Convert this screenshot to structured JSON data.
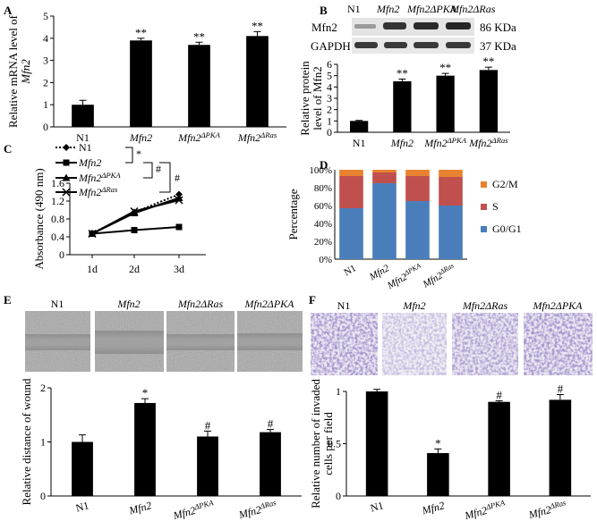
{
  "figure": {
    "panel_letters": {
      "A": "A",
      "B": "B",
      "C": "C",
      "D": "D",
      "E": "E",
      "F": "F"
    }
  },
  "chart_data": [
    {
      "panel": "A",
      "type": "bar",
      "categories": [
        "N1",
        "Mfn2",
        "Mfn2ΔPKA",
        "Mfn2ΔRas"
      ],
      "values": [
        1.0,
        3.9,
        3.7,
        4.1
      ],
      "errors": [
        0.2,
        0.1,
        0.12,
        0.2
      ],
      "annotations": [
        "",
        "**",
        "**",
        "**"
      ],
      "ylabel_line1": "Relative mRNA level of",
      "ylabel_line2": "Mfn2",
      "ylim": [
        0,
        5
      ],
      "yticks": [
        0,
        1,
        2,
        3,
        4,
        5
      ]
    },
    {
      "panel": "B",
      "type": "bar",
      "blot_header": [
        "N1",
        "Mfn2",
        "Mfn2ΔPKA",
        "Mfn2ΔRas"
      ],
      "blot_rows": [
        {
          "protein": "Mfn2",
          "size": "86 KDa"
        },
        {
          "protein": "GAPDH",
          "size": "37 KDa"
        }
      ],
      "categories": [
        "N1",
        "Mfn2",
        "Mfn2ΔPKA",
        "Mfn2ΔRas"
      ],
      "values": [
        1.0,
        4.5,
        5.0,
        5.5
      ],
      "errors": [
        0.05,
        0.2,
        0.2,
        0.25
      ],
      "annotations": [
        "",
        "**",
        "**",
        "**"
      ],
      "ylabel_line1": "Relative protein",
      "ylabel_line2": "level of Mfn2",
      "ylim": [
        0,
        6
      ],
      "yticks": [
        0,
        1,
        2,
        3,
        4,
        5,
        6
      ]
    },
    {
      "panel": "C",
      "type": "line",
      "x": [
        "1d",
        "2d",
        "3d"
      ],
      "series": [
        {
          "name": "N1",
          "values": [
            0.48,
            0.95,
            1.35
          ],
          "style": "dotted",
          "marker": "diamond"
        },
        {
          "name": "Mfn2",
          "values": [
            0.47,
            0.55,
            0.62
          ],
          "style": "solid",
          "marker": "square"
        },
        {
          "name": "Mfn2ΔPKA",
          "values": [
            0.47,
            0.93,
            1.27
          ],
          "style": "solid",
          "marker": "triangle"
        },
        {
          "name": "Mfn2ΔRas",
          "values": [
            0.47,
            0.97,
            1.22
          ],
          "style": "solid",
          "marker": "x"
        }
      ],
      "significance": [
        "*",
        "#",
        "#"
      ],
      "ylabel": "Absorbance (490 nm)",
      "ylim": [
        0,
        1.6
      ],
      "yticks": [
        "0",
        "0.4",
        "0.8",
        "1.2",
        "1.6"
      ]
    },
    {
      "panel": "D",
      "type": "bar",
      "stacked": true,
      "categories": [
        "N1",
        "Mfn2",
        "Mfn2ΔPKA",
        "Mfn2ΔRas"
      ],
      "series": [
        {
          "name": "G0/G1",
          "values": [
            57,
            85,
            65,
            60
          ],
          "color": "#4a7ebb"
        },
        {
          "name": "S",
          "values": [
            36,
            12,
            28,
            32
          ],
          "color": "#c0504d"
        },
        {
          "name": "G2/M",
          "values": [
            7,
            3,
            7,
            8
          ],
          "color": "#e8822e"
        }
      ],
      "ylabel": "Percentage",
      "ylim": [
        0,
        100
      ],
      "yticks": [
        "0%",
        "20%",
        "40%",
        "60%",
        "80%",
        "100%"
      ]
    },
    {
      "panel": "E",
      "type": "bar",
      "image_labels": [
        "N1",
        "Mfn2",
        "Mfn2ΔRas",
        "Mfn2ΔPKA"
      ],
      "categories": [
        "N1",
        "Mfn2",
        "Mfn2ΔPKA",
        "Mfn2ΔRas"
      ],
      "values": [
        1.0,
        1.72,
        1.1,
        1.18
      ],
      "errors": [
        0.13,
        0.08,
        0.1,
        0.05
      ],
      "annotations": [
        "",
        "*",
        "#",
        "#"
      ],
      "ylabel": "Relative distance of wound",
      "ylim": [
        0,
        2
      ],
      "yticks": [
        0,
        1,
        2
      ]
    },
    {
      "panel": "F",
      "type": "bar",
      "image_labels": [
        "N1",
        "Mfn2",
        "Mfn2ΔRas",
        "Mfn2ΔPKA"
      ],
      "categories": [
        "N1",
        "Mfn2",
        "Mfn2ΔPKA",
        "Mfn2ΔRas"
      ],
      "values": [
        1.0,
        0.41,
        0.9,
        0.92
      ],
      "errors": [
        0.02,
        0.04,
        0.01,
        0.05
      ],
      "annotations": [
        "",
        "*",
        "#",
        "#"
      ],
      "ylabel_line1": "Relative number of invaded",
      "ylabel_line2": "cells per field",
      "ylim": [
        0,
        1
      ],
      "yticks": [
        "0",
        "0.5",
        "1"
      ]
    }
  ]
}
